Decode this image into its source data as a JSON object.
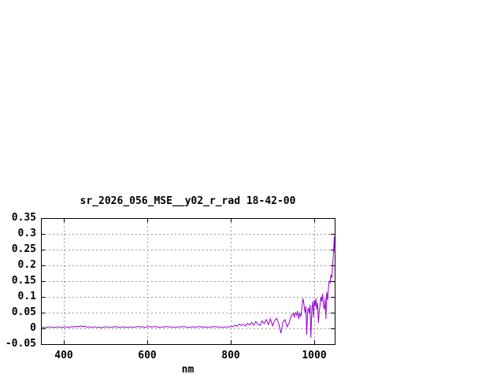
{
  "window": {
    "background": "#ffffff"
  },
  "chart_data": {
    "type": "line",
    "title": "sr_2026_056_MSE__y02_r_rad 18-42-00",
    "xlabel": "nm",
    "ylabel": "",
    "xlim": [
      345,
      1049
    ],
    "ylim": [
      -0.05,
      0.35
    ],
    "x_ticks": [
      400,
      600,
      800,
      1000
    ],
    "x_tick_labels": [
      "400",
      "600",
      "800",
      "1000"
    ],
    "y_ticks": [
      -0.05,
      0,
      0.05,
      0.1,
      0.15,
      0.2,
      0.25,
      0.3,
      0.35
    ],
    "y_tick_labels": [
      "-0.05",
      "0",
      "0.05",
      "0.1",
      "0.15",
      "0.2",
      "0.25",
      "0.3",
      "0.35"
    ],
    "grid": true,
    "legend": false,
    "line_color": "#9400d3",
    "grid_color": "#989898",
    "border_color": "#000000",
    "text_color": "#000000",
    "series": [
      {
        "name": "sr_2026_056_MSE__y02_r_rad 18-42-00",
        "x": [
          345,
          350,
          355,
          360,
          365,
          370,
          375,
          380,
          385,
          390,
          395,
          400,
          405,
          410,
          415,
          420,
          425,
          430,
          435,
          440,
          445,
          450,
          455,
          460,
          465,
          470,
          475,
          480,
          485,
          490,
          495,
          500,
          505,
          510,
          515,
          520,
          525,
          530,
          535,
          540,
          545,
          550,
          555,
          560,
          565,
          570,
          575,
          580,
          585,
          590,
          595,
          600,
          605,
          610,
          615,
          620,
          625,
          630,
          635,
          640,
          645,
          650,
          655,
          660,
          665,
          670,
          675,
          680,
          685,
          690,
          695,
          700,
          705,
          710,
          715,
          720,
          725,
          730,
          735,
          740,
          745,
          750,
          755,
          760,
          765,
          770,
          775,
          780,
          785,
          790,
          795,
          800,
          805,
          810,
          815,
          820,
          825,
          830,
          835,
          840,
          845,
          850,
          855,
          860,
          865,
          870,
          875,
          880,
          885,
          890,
          895,
          900,
          905,
          910,
          915,
          920,
          925,
          930,
          935,
          940,
          945,
          950,
          952,
          955,
          958,
          960,
          963,
          965,
          968,
          970,
          973,
          975,
          978,
          980,
          982,
          984,
          986,
          988,
          990,
          992,
          994,
          996,
          998,
          1000,
          1002,
          1004,
          1006,
          1008,
          1010,
          1012,
          1014,
          1016,
          1018,
          1020,
          1022,
          1024,
          1026,
          1028,
          1030,
          1032,
          1034,
          1036,
          1038,
          1040,
          1042,
          1044,
          1046,
          1048,
          1049
        ],
        "y": [
          0.003,
          0.004,
          0.002,
          0.004,
          0.005,
          0.003,
          0.004,
          0.003,
          0.005,
          0.004,
          0.003,
          0.004,
          0.005,
          0.003,
          0.004,
          0.006,
          0.004,
          0.007,
          0.005,
          0.008,
          0.006,
          0.007,
          0.004,
          0.005,
          0.003,
          0.004,
          0.005,
          0.003,
          0.004,
          0.002,
          0.004,
          0.005,
          0.004,
          0.003,
          0.005,
          0.004,
          0.006,
          0.004,
          0.003,
          0.005,
          0.004,
          0.003,
          0.004,
          0.005,
          0.003,
          0.004,
          0.005,
          0.006,
          0.004,
          0.005,
          0.003,
          0.005,
          0.006,
          0.004,
          0.005,
          0.006,
          0.004,
          0.003,
          0.005,
          0.004,
          0.006,
          0.005,
          0.004,
          0.005,
          0.003,
          0.004,
          0.005,
          0.004,
          0.006,
          0.005,
          0.004,
          0.003,
          0.004,
          0.005,
          0.004,
          0.005,
          0.006,
          0.004,
          0.005,
          0.004,
          0.003,
          0.005,
          0.004,
          0.006,
          0.005,
          0.004,
          0.005,
          0.003,
          0.004,
          0.005,
          0.004,
          0.006,
          0.006,
          0.01,
          0.007,
          0.014,
          0.009,
          0.013,
          0.008,
          0.016,
          0.011,
          0.019,
          0.01,
          0.022,
          0.013,
          0.01,
          0.024,
          0.015,
          0.028,
          0.012,
          0.03,
          0.008,
          0.025,
          0.032,
          0.015,
          -0.015,
          0.02,
          0.028,
          0.005,
          0.018,
          0.04,
          0.048,
          0.035,
          0.05,
          0.042,
          0.055,
          0.03,
          0.048,
          0.038,
          0.06,
          0.095,
          0.08,
          0.05,
          0.07,
          -0.02,
          0.055,
          0.065,
          0.048,
          0.075,
          -0.03,
          0.06,
          0.085,
          0.035,
          0.09,
          0.07,
          0.095,
          0.06,
          0.08,
          0.018,
          0.055,
          0.075,
          0.1,
          0.085,
          0.11,
          0.075,
          0.06,
          0.095,
          0.03,
          0.115,
          0.09,
          0.13,
          0.15,
          0.145,
          0.17,
          0.16,
          0.2,
          0.24,
          0.29,
          0.24
        ]
      }
    ]
  }
}
